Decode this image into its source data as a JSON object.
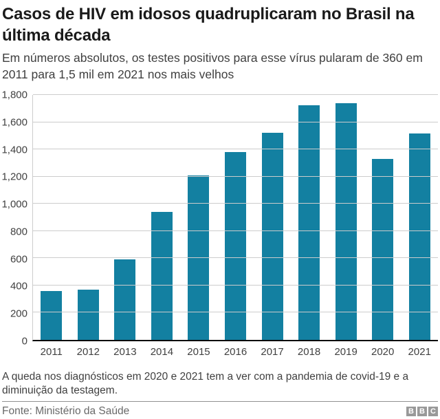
{
  "header": {
    "title": "Casos de HIV em idosos quadruplicaram no Brasil na última década",
    "subtitle": "Em números absolutos, os testes positivos para esse vírus pularam de 360 em 2011 para 1,5 mil em 2021 nos mais velhos"
  },
  "chart_data": {
    "type": "bar",
    "categories": [
      "2011",
      "2012",
      "2013",
      "2014",
      "2015",
      "2016",
      "2017",
      "2018",
      "2019",
      "2020",
      "2021"
    ],
    "values": [
      360,
      370,
      590,
      940,
      1210,
      1380,
      1520,
      1725,
      1740,
      1330,
      1515
    ],
    "title": "Casos de HIV em idosos quadruplicaram no Brasil na última década",
    "xlabel": "",
    "ylabel": "",
    "ylim": [
      0,
      1800
    ],
    "ytick_interval": 200,
    "ytick_labels": [
      "0",
      "200",
      "400",
      "600",
      "800",
      "1,000",
      "1,200",
      "1,400",
      "1,600",
      "1,800"
    ],
    "grid": true,
    "legend_position": "none",
    "bar_color": "#1380A1"
  },
  "footer": {
    "note": "A queda nos diagnósticos em 2020 e 2021 tem a ver com a pandemia de covid-19 e a diminuição da testagem.",
    "source": "Fonte: Ministério da Saúde",
    "logo_letters": [
      "B",
      "B",
      "C"
    ]
  },
  "colors": {
    "bar": "#1380A1",
    "grid": "#cccccc",
    "axis": "#000000",
    "title_text": "#1a1a1a",
    "subtitle_text": "#404040",
    "tick_text": "#404040",
    "source_text": "#696969",
    "logo_bg": "#999999"
  }
}
